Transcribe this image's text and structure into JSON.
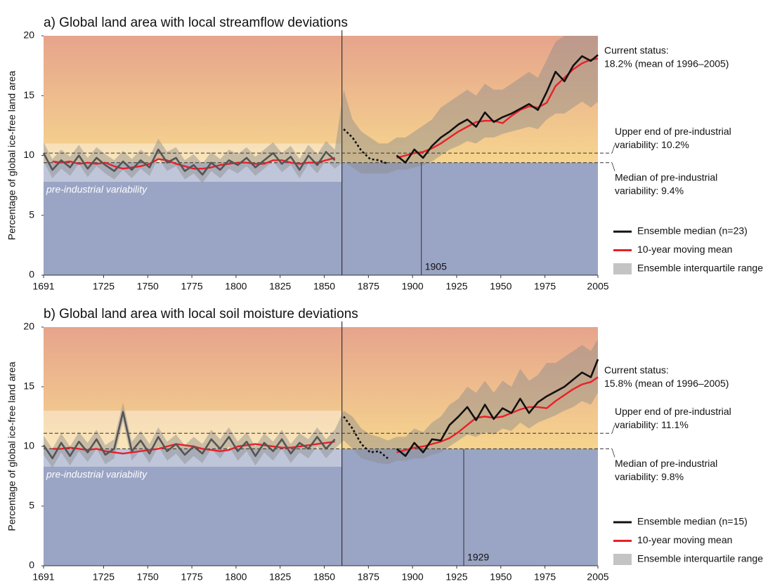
{
  "chart_data": [
    {
      "type": "line",
      "title": "a) Global land area with local streamflow deviations",
      "ylabel": "Percentage of global ice-free land area",
      "xlim": [
        1691,
        2005
      ],
      "xticks": [
        1691,
        1725,
        1750,
        1775,
        1800,
        1825,
        1850,
        1875,
        1900,
        1925,
        1950,
        1975,
        2005
      ],
      "ylim": [
        0,
        20
      ],
      "yticks": [
        0,
        5,
        10,
        15,
        20
      ],
      "x": [
        1691,
        1696,
        1701,
        1706,
        1711,
        1716,
        1721,
        1726,
        1731,
        1736,
        1741,
        1746,
        1751,
        1756,
        1761,
        1766,
        1771,
        1776,
        1781,
        1786,
        1791,
        1796,
        1801,
        1806,
        1811,
        1816,
        1821,
        1826,
        1831,
        1836,
        1841,
        1846,
        1851,
        1856,
        1861,
        1866,
        1871,
        1876,
        1881,
        1886,
        1891,
        1896,
        1901,
        1906,
        1911,
        1916,
        1921,
        1926,
        1931,
        1936,
        1941,
        1946,
        1951,
        1956,
        1961,
        1966,
        1971,
        1976,
        1981,
        1986,
        1991,
        1996,
        2001,
        2005
      ],
      "series": [
        {
          "name": "Ensemble median (n=23)",
          "color": "#111111",
          "color_preindustrial": "#555555",
          "values": [
            10.2,
            8.8,
            9.6,
            9.0,
            10.0,
            8.9,
            9.8,
            9.2,
            8.7,
            9.5,
            8.8,
            9.6,
            9.0,
            10.5,
            9.4,
            9.8,
            8.7,
            9.2,
            8.4,
            9.4,
            8.8,
            9.6,
            9.2,
            9.8,
            9.0,
            9.6,
            10.2,
            9.3,
            9.9,
            8.8,
            10.0,
            9.2,
            10.3,
            9.6,
            12.2,
            11.5,
            10.4,
            9.7,
            9.6,
            9.3,
            10.0,
            9.4,
            10.5,
            9.8,
            10.8,
            11.5,
            12.0,
            12.6,
            13.0,
            12.4,
            13.6,
            12.8,
            13.2,
            13.5,
            13.9,
            14.3,
            13.8,
            15.3,
            17.0,
            16.2,
            17.5,
            18.3,
            17.9,
            18.4
          ]
        },
        {
          "name": "10-year moving mean",
          "color": "#e8202a",
          "values": [
            null,
            9.5,
            9.4,
            9.5,
            9.3,
            9.4,
            9.3,
            9.4,
            9.1,
            8.9,
            9.0,
            9.1,
            9.3,
            9.7,
            9.6,
            9.3,
            9.1,
            8.9,
            8.9,
            9.0,
            9.2,
            9.3,
            9.4,
            9.4,
            9.3,
            9.3,
            9.6,
            9.6,
            9.4,
            9.3,
            9.4,
            9.4,
            9.6,
            9.8,
            null,
            null,
            null,
            null,
            null,
            null,
            9.8,
            10.0,
            10.2,
            10.3,
            10.6,
            11.0,
            11.5,
            12.0,
            12.4,
            12.8,
            12.9,
            12.9,
            12.7,
            13.3,
            13.8,
            14.1,
            14.0,
            14.4,
            15.8,
            16.5,
            17.2,
            17.7,
            18.0,
            18.1
          ]
        },
        {
          "name": "Ensemble interquartile range",
          "color": "#8c8c8c",
          "low": [
            9.5,
            8.1,
            8.9,
            8.3,
            9.3,
            8.2,
            9.1,
            8.5,
            8.0,
            8.8,
            8.1,
            8.9,
            8.3,
            9.8,
            8.7,
            9.1,
            8.0,
            8.5,
            7.7,
            8.7,
            8.1,
            8.9,
            8.5,
            9.1,
            8.3,
            8.9,
            9.5,
            8.6,
            9.2,
            8.1,
            9.3,
            8.5,
            9.6,
            8.9,
            9.5,
            9.0,
            8.5,
            8.5,
            8.5,
            8.5,
            8.8,
            8.8,
            9.0,
            9.2,
            9.5,
            10.0,
            10.5,
            10.8,
            11.2,
            11.0,
            11.5,
            11.5,
            11.8,
            12.0,
            12.2,
            12.4,
            12.2,
            13.0,
            13.5,
            13.5,
            14.0,
            14.5,
            14.0,
            14.5
          ],
          "high": [
            11.1,
            9.7,
            10.5,
            9.9,
            10.9,
            9.8,
            10.7,
            10.1,
            9.6,
            10.4,
            9.7,
            10.5,
            9.9,
            11.4,
            10.3,
            10.7,
            9.6,
            10.1,
            9.3,
            10.3,
            9.7,
            10.5,
            10.1,
            10.7,
            9.9,
            10.5,
            11.1,
            10.2,
            10.8,
            9.7,
            10.9,
            10.1,
            11.2,
            10.5,
            15.5,
            13.0,
            12.0,
            11.5,
            11.0,
            11.0,
            11.5,
            11.5,
            12.0,
            12.5,
            13.0,
            14.0,
            14.5,
            15.0,
            15.5,
            15.0,
            16.0,
            15.5,
            15.5,
            16.0,
            16.5,
            17.0,
            16.5,
            18.0,
            19.5,
            20.0,
            20.0,
            20.0,
            20.0,
            20.0
          ]
        }
      ],
      "dotted_x": [
        1861,
        1886
      ],
      "preindustrial_band": {
        "label": "pre-industrial variability",
        "x": [
          1691,
          1860
        ],
        "y": [
          7.8,
          11.0
        ]
      },
      "reference_lines": [
        {
          "value": 10.2,
          "label": [
            "Upper end of pre-industrial",
            "variability: 10.2%"
          ]
        },
        {
          "value": 9.4,
          "label": [
            "Median of pre-industrial",
            "variability: 9.4%"
          ]
        }
      ],
      "emergence_year": 1905,
      "current_status": {
        "value": 18.2,
        "label": [
          "Current status:",
          "18.2% (mean of 1996–2005)"
        ]
      },
      "background": {
        "below": "#9aa4c4",
        "low": "#f6d58e",
        "high": "#e6a48c"
      },
      "legend": "right"
    },
    {
      "type": "line",
      "title": "b) Global land area with local soil moisture deviations",
      "ylabel": "Percentage of global ice-free land area",
      "xlim": [
        1691,
        2005
      ],
      "xticks": [
        1691,
        1725,
        1750,
        1775,
        1800,
        1825,
        1850,
        1875,
        1900,
        1925,
        1950,
        1975,
        2005
      ],
      "ylim": [
        0,
        20
      ],
      "yticks": [
        0,
        5,
        10,
        15,
        20
      ],
      "x": [
        1691,
        1696,
        1701,
        1706,
        1711,
        1716,
        1721,
        1726,
        1731,
        1736,
        1741,
        1746,
        1751,
        1756,
        1761,
        1766,
        1771,
        1776,
        1781,
        1786,
        1791,
        1796,
        1801,
        1806,
        1811,
        1816,
        1821,
        1826,
        1831,
        1836,
        1841,
        1846,
        1851,
        1856,
        1861,
        1866,
        1871,
        1876,
        1881,
        1886,
        1891,
        1896,
        1901,
        1906,
        1911,
        1916,
        1921,
        1926,
        1931,
        1936,
        1941,
        1946,
        1951,
        1956,
        1961,
        1966,
        1971,
        1976,
        1981,
        1986,
        1991,
        1996,
        2001,
        2005
      ],
      "series": [
        {
          "name": "Ensemble median (n=15)",
          "color": "#111111",
          "color_preindustrial": "#555555",
          "values": [
            10.1,
            9.0,
            10.3,
            9.2,
            10.4,
            9.5,
            10.6,
            9.3,
            9.8,
            12.9,
            9.6,
            10.5,
            9.4,
            10.8,
            9.6,
            10.2,
            9.3,
            10.0,
            9.4,
            10.6,
            9.8,
            10.8,
            9.6,
            10.4,
            9.2,
            10.3,
            9.6,
            10.6,
            9.4,
            10.3,
            9.8,
            10.8,
            9.8,
            10.6,
            12.5,
            11.5,
            10.2,
            9.5,
            9.6,
            9.0,
            9.8,
            9.2,
            10.3,
            9.5,
            10.6,
            10.5,
            11.8,
            12.5,
            13.3,
            12.2,
            13.5,
            12.3,
            13.2,
            12.8,
            14.0,
            12.8,
            13.7,
            14.2,
            14.6,
            15.0,
            15.6,
            16.2,
            15.8,
            17.3
          ]
        },
        {
          "name": "10-year moving mean",
          "color": "#e8202a",
          "values": [
            null,
            9.8,
            9.8,
            9.9,
            9.8,
            9.7,
            9.8,
            9.6,
            9.5,
            9.4,
            9.5,
            9.6,
            9.7,
            9.8,
            10.0,
            10.2,
            10.1,
            10.0,
            9.8,
            9.7,
            9.6,
            9.7,
            10.0,
            10.1,
            10.2,
            10.1,
            10.0,
            9.9,
            9.9,
            10.0,
            10.1,
            10.2,
            10.3,
            10.4,
            null,
            null,
            null,
            null,
            null,
            null,
            9.5,
            9.7,
            9.9,
            10.0,
            10.2,
            10.4,
            10.7,
            11.2,
            11.8,
            12.4,
            12.5,
            12.4,
            12.5,
            12.8,
            13.1,
            13.3,
            13.3,
            13.2,
            13.8,
            14.3,
            14.8,
            15.2,
            15.4,
            15.8
          ]
        },
        {
          "name": "Ensemble interquartile range",
          "color": "#8c8c8c",
          "low": [
            9.3,
            8.2,
            9.5,
            8.4,
            9.6,
            8.7,
            9.8,
            8.5,
            9.0,
            12.1,
            8.8,
            9.7,
            8.6,
            10.0,
            8.8,
            9.4,
            8.5,
            9.2,
            8.6,
            9.8,
            9.0,
            10.0,
            8.8,
            9.6,
            8.4,
            9.5,
            8.8,
            9.8,
            8.6,
            9.5,
            9.0,
            10.0,
            9.0,
            9.8,
            10.5,
            9.8,
            9.0,
            8.8,
            8.6,
            8.5,
            8.8,
            8.8,
            9.0,
            9.0,
            9.3,
            9.5,
            10.0,
            10.5,
            11.0,
            10.8,
            11.2,
            11.0,
            11.5,
            11.3,
            12.0,
            11.5,
            12.0,
            12.3,
            12.6,
            13.0,
            13.3,
            13.8,
            13.5,
            14.5
          ],
          "high": [
            10.9,
            9.8,
            11.1,
            10.0,
            11.2,
            10.3,
            11.4,
            10.1,
            10.6,
            13.7,
            10.4,
            11.3,
            10.2,
            11.6,
            10.4,
            11.0,
            10.1,
            10.8,
            10.2,
            11.4,
            10.6,
            11.6,
            10.4,
            11.2,
            10.0,
            11.1,
            10.4,
            11.4,
            10.2,
            11.1,
            10.6,
            11.6,
            10.6,
            11.4,
            13.0,
            12.5,
            11.5,
            11.0,
            10.8,
            10.5,
            10.8,
            10.8,
            11.5,
            11.2,
            12.0,
            12.5,
            13.5,
            14.0,
            15.0,
            14.5,
            15.5,
            14.5,
            15.5,
            15.0,
            16.5,
            15.5,
            16.0,
            17.0,
            17.0,
            17.5,
            18.0,
            18.5,
            18.0,
            19.0
          ]
        }
      ],
      "dotted_x": [
        1861,
        1886
      ],
      "preindustrial_band": {
        "label": "pre-industrial variability",
        "x": [
          1691,
          1860
        ],
        "y": [
          8.3,
          13.0
        ]
      },
      "reference_lines": [
        {
          "value": 11.1,
          "label": [
            "Upper end of pre-industrial",
            "variability: 11.1%"
          ]
        },
        {
          "value": 9.8,
          "label": [
            "Median of pre-industrial",
            "variability: 9.8%"
          ]
        }
      ],
      "emergence_year": 1929,
      "current_status": {
        "value": 15.8,
        "label": [
          "Current status:",
          "15.8% (mean of 1996–2005)"
        ]
      },
      "background": {
        "below": "#9aa4c4",
        "low": "#f6d58e",
        "high": "#e6a48c"
      },
      "legend": "right"
    }
  ]
}
